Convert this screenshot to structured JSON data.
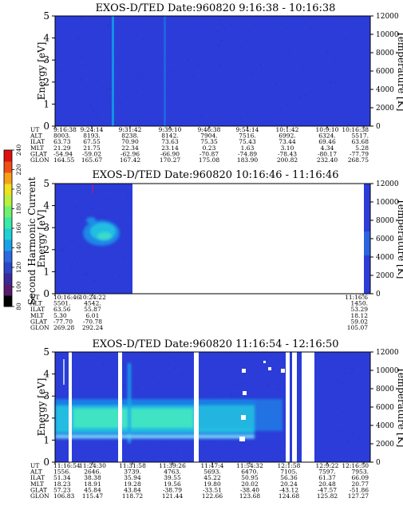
{
  "chart_data": [
    {
      "type": "heatmap",
      "title": "EXOS-D/TED   Date:960820   9:16:38 - 10:16:38",
      "ylabel": "Energy [eV]",
      "y2label": "Temperature [K]",
      "ylim": [
        0,
        5
      ],
      "y2lim": [
        0,
        12000
      ],
      "yticks": [
        "0",
        "1",
        "2",
        "3",
        "4",
        "5"
      ],
      "y2ticks": [
        "0",
        "2000",
        "4000",
        "6000",
        "8000",
        "10000",
        "12000"
      ],
      "row_labels": [
        "UT",
        "ALT",
        "ILAT",
        "MLT",
        "GLAT",
        "GLON"
      ],
      "columns": [
        {
          "UT": "9:16:38",
          "ALT": "8003.",
          "ILAT": "63.73",
          "MLT": "21.29",
          "GLAT": "-54.94",
          "GLON": "164.55"
        },
        {
          "UT": "9:24:14",
          "ALT": "8193.",
          "ILAT": "67.55",
          "MLT": "21.75",
          "GLAT": "-59.02",
          "GLON": "165.67"
        },
        {
          "UT": "9:31:42",
          "ALT": "8238.",
          "ILAT": "70.90",
          "MLT": "22.34",
          "GLAT": "-62.96",
          "GLON": "167.42"
        },
        {
          "UT": "9:39:10",
          "ALT": "8142.",
          "ILAT": "73.63",
          "MLT": "23.14",
          "GLAT": "-66.90",
          "GLON": "170.27"
        },
        {
          "UT": "9:46:38",
          "ALT": "7904.",
          "ILAT": "75.35",
          "MLT": "0.23",
          "GLAT": "-70.87",
          "GLON": "175.08"
        },
        {
          "UT": "9:54:14",
          "ALT": "7516.",
          "ILAT": "75.43",
          "MLT": "1.63",
          "GLAT": "-74.89",
          "GLON": "183.90"
        },
        {
          "UT": "10:1:42",
          "ALT": "6992.",
          "ILAT": "73.44",
          "MLT": "3.10",
          "GLAT": "-78.43",
          "GLON": "200.82"
        },
        {
          "UT": "10:9:10",
          "ALT": "6324.",
          "ILAT": "69.46",
          "MLT": "4.34",
          "GLAT": "-80.17",
          "GLON": "232.40"
        },
        {
          "UT": "10:16:38",
          "ALT": "5517.",
          "ILAT": "63.68",
          "MLT": "5.28",
          "GLAT": "-77.79",
          "GLON": "268.75"
        }
      ],
      "x": [
        "9:16:38",
        "9:24:14",
        "9:31:42",
        "9:39:10",
        "9:46:38",
        "9:54:14",
        "10:1:42",
        "10:9:10",
        "10:16:38"
      ],
      "features": [
        {
          "type": "background",
          "color": "#2b3cd8"
        },
        {
          "type": "vertical-streak",
          "t": "9:24:14",
          "color": "#0ea0e6"
        },
        {
          "type": "vertical-streak",
          "t": "9:39:10",
          "color": "#1f6fe6"
        }
      ]
    },
    {
      "type": "heatmap",
      "title": "EXOS-D/TED   Date:960820   10:16:46 - 11:16:46",
      "ylabel": "Energy [eV]",
      "y2label": "Temperature [K]",
      "ylim": [
        0,
        5
      ],
      "y2lim": [
        0,
        12000
      ],
      "yticks": [
        "0",
        "1",
        "2",
        "3",
        "4",
        "5"
      ],
      "y2ticks": [
        "0",
        "2000",
        "4000",
        "6000",
        "8000",
        "10000",
        "12000"
      ],
      "colorbar": {
        "label": "Second Harmonic Current",
        "ticks": [
          "80",
          "100",
          "120",
          "140",
          "160",
          "180",
          "200",
          "220",
          "240"
        ],
        "colors": [
          "#000000",
          "#5a1a6e",
          "#3a2a9a",
          "#2f45c8",
          "#2c68e0",
          "#1aa0e8",
          "#1fd0d8",
          "#3ae8a8",
          "#70f070",
          "#b8f040",
          "#f0e020",
          "#f8a018",
          "#f05018",
          "#e01010"
        ]
      },
      "row_labels": [
        "UT",
        "ALT",
        "ILAT",
        "MLT",
        "GLAT",
        "GLON"
      ],
      "columns": [
        {
          "UT": "10:16:46",
          "ALT": "5501.",
          "ILAT": "63.56",
          "MLT": "5.30",
          "GLAT": "-77.70",
          "GLON": "269.28"
        },
        {
          "UT": "10:24:22",
          "ALT": "4542.",
          "ILAT": "55.87",
          "MLT": "6.01",
          "GLAT": "-70.78",
          "GLON": "292.24"
        },
        {
          "UT": "11:16:6",
          "ALT": "1450.",
          "ILAT": "53.29",
          "MLT": "18.12",
          "GLAT": "59.02",
          "GLON": "105.07"
        }
      ],
      "x": [
        "10:16:46",
        "10:24:22",
        "11:16:6"
      ],
      "features": [
        {
          "type": "background",
          "color": "#2b3cd8"
        },
        {
          "type": "enhancement",
          "t_from": "10:16:46",
          "t_to": "10:24:22",
          "energy_from": 2.3,
          "energy_to": 3.6,
          "color": "#1fb0e8"
        },
        {
          "type": "data-gap",
          "t_from": "10:24:22",
          "t_to": "11:16:6",
          "color": "#ffffff"
        }
      ]
    },
    {
      "type": "heatmap",
      "title": "EXOS-D/TED   Date:960820   11:16:54 - 12:16:50",
      "ylabel": "Energy [eV]",
      "y2label": "Temperature [K]",
      "ylim": [
        0,
        5
      ],
      "y2lim": [
        0,
        12000
      ],
      "yticks": [
        "0",
        "1",
        "2",
        "3",
        "4",
        "5"
      ],
      "y2ticks": [
        "0",
        "2000",
        "4000",
        "6000",
        "8000",
        "10000",
        "12000"
      ],
      "row_labels": [
        "UT",
        "ALT",
        "ILAT",
        "MLT",
        "GLAT",
        "GLON"
      ],
      "columns": [
        {
          "UT": "11:16:54",
          "ALT": "1556.",
          "ILAT": "51.34",
          "MLT": "18.23",
          "GLAT": "57.23",
          "GLON": "106.83"
        },
        {
          "UT": "11:24:30",
          "ALT": "2646.",
          "ILAT": "38.38",
          "MLT": "18.91",
          "GLAT": "45.84",
          "GLON": "115.47"
        },
        {
          "UT": "11:31:58",
          "ALT": "3739.",
          "ILAT": "35.94",
          "MLT": "19.28",
          "GLAT": "43.84",
          "GLON": "118.72"
        },
        {
          "UT": "11:39:26",
          "ALT": "4763.",
          "ILAT": "39.55",
          "MLT": "19.56",
          "GLAT": "-38.79",
          "GLON": "121.44"
        },
        {
          "UT": "11:47:4",
          "ALT": "5693.",
          "ILAT": "45.22",
          "MLT": "19.80",
          "GLAT": "-33.51",
          "GLON": "122.66"
        },
        {
          "UT": "11:54:32",
          "ALT": "6470.",
          "ILAT": "50.95",
          "MLT": "20.02",
          "GLAT": "-38.40",
          "GLON": "123.68"
        },
        {
          "UT": "12:1:58",
          "ALT": "7105.",
          "ILAT": "56.36",
          "MLT": "20.24",
          "GLAT": "-43.12",
          "GLON": "124.68"
        },
        {
          "UT": "12:9:22",
          "ALT": "7597.",
          "ILAT": "61.37",
          "MLT": "20.48",
          "GLAT": "-47.57",
          "GLON": "125.82"
        },
        {
          "UT": "12:16:50",
          "ALT": "7953.",
          "ILAT": "66.09",
          "MLT": "20.77",
          "GLAT": "-51.86",
          "GLON": "127.27"
        }
      ],
      "x": [
        "11:16:54",
        "11:24:30",
        "11:31:58",
        "11:39:26",
        "11:47:4",
        "11:54:32",
        "12:1:58",
        "12:9:22",
        "12:16:50"
      ],
      "features": [
        {
          "type": "background",
          "color": "#2b3cd8"
        },
        {
          "type": "band",
          "energy_center": 2.1,
          "energy_halfwidth": 0.55,
          "t_from": "11:16:54",
          "t_to": "11:54:32",
          "color": "#40e0c0"
        },
        {
          "type": "data-gap",
          "t_from": "11:24:30",
          "t_to": "11:24:30",
          "color": "#ffffff"
        },
        {
          "type": "data-gap",
          "t_from": "11:31:58",
          "t_to": "11:31:58",
          "color": "#ffffff"
        },
        {
          "type": "data-gap",
          "t_from": "11:39:26",
          "t_to": "11:47:4",
          "color": "#ffffff"
        },
        {
          "type": "data-gap",
          "t_from": "12:1:58",
          "t_to": "12:9:22",
          "color": "#ffffff"
        }
      ]
    }
  ]
}
